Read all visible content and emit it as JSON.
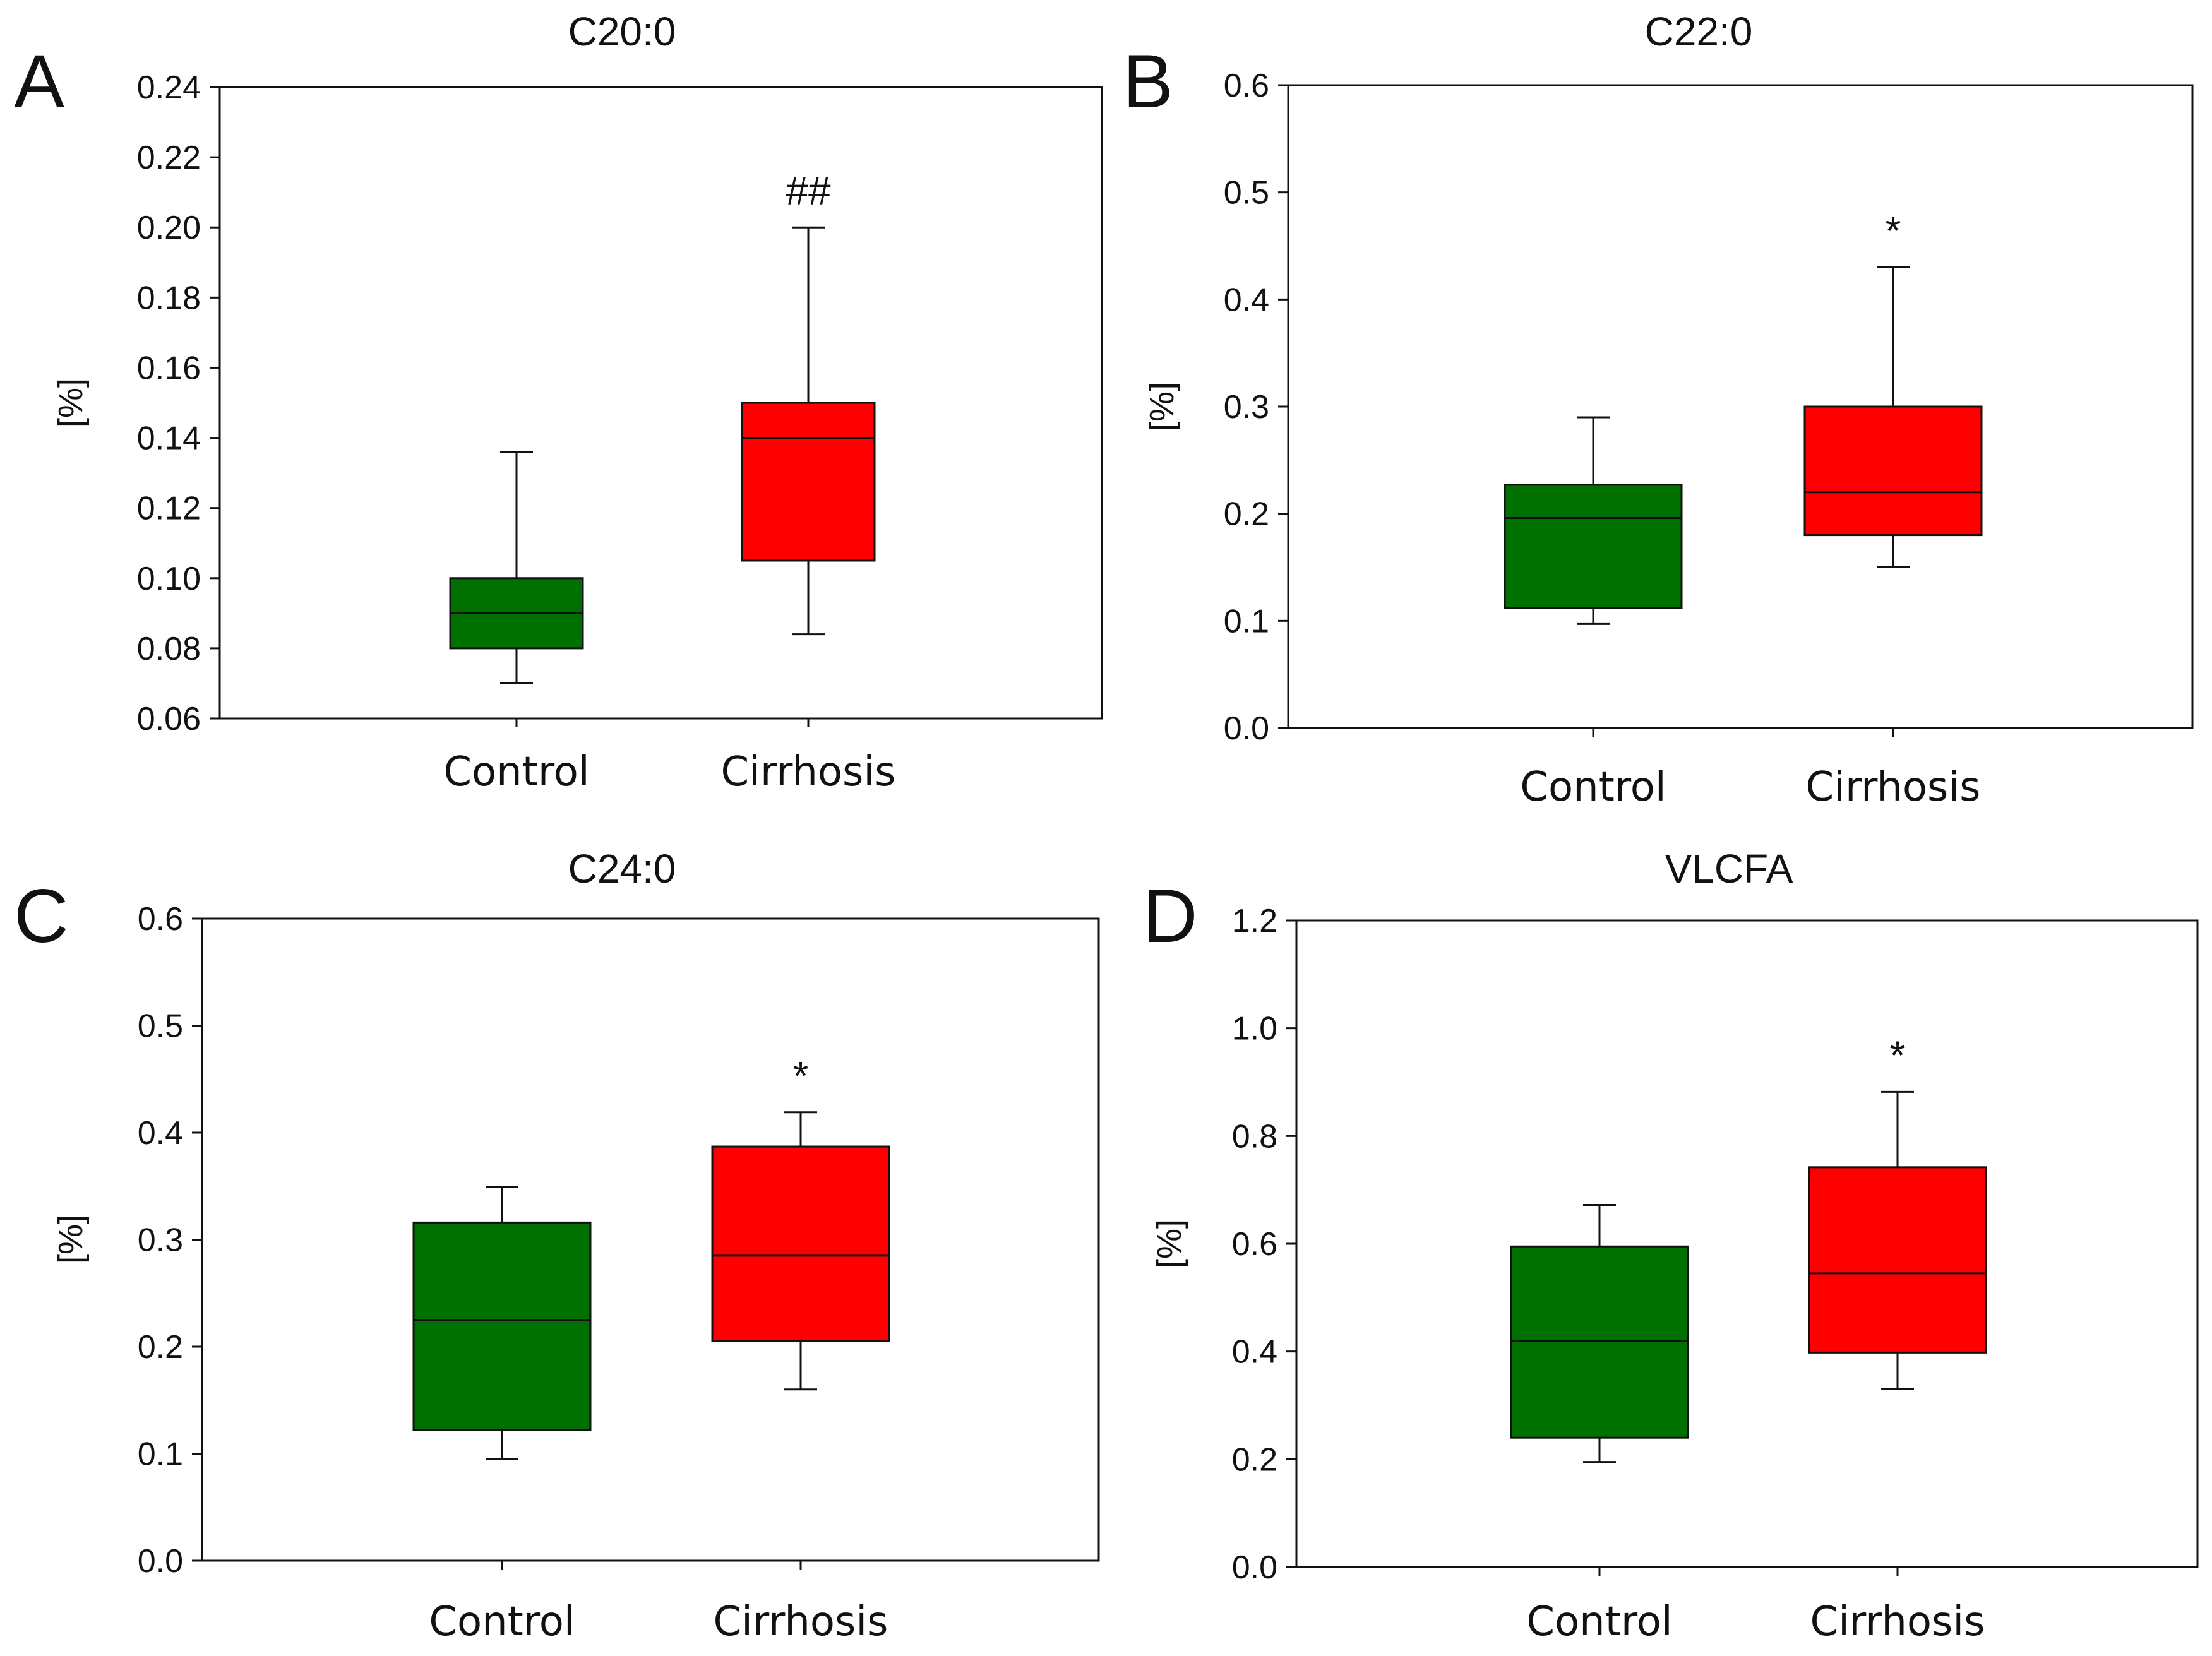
{
  "chart_data": [
    {
      "type": "box",
      "panel_letter": "A",
      "title": "C20:0",
      "ylabel": "[%]",
      "xlabel": "",
      "ylim": [
        0.06,
        0.24
      ],
      "yticks": [
        "0.06",
        "0.08",
        "0.10",
        "0.12",
        "0.14",
        "0.16",
        "0.18",
        "0.20",
        "0.22",
        "0.24"
      ],
      "categories": [
        "Control",
        "Cirrhosis"
      ],
      "boxes": [
        {
          "name": "Control",
          "color": "#007000",
          "whisker_low": 0.07,
          "q1": 0.08,
          "median": 0.09,
          "q3": 0.1,
          "whisker_high": 0.136,
          "sig": ""
        },
        {
          "name": "Cirrhosis",
          "color": "#ff0000",
          "whisker_low": 0.084,
          "q1": 0.105,
          "median": 0.14,
          "q3": 0.15,
          "whisker_high": 0.2,
          "sig": "##"
        }
      ]
    },
    {
      "type": "box",
      "panel_letter": "B",
      "title": "C22:0",
      "ylabel": "[%]",
      "xlabel": "",
      "ylim": [
        0.0,
        0.6
      ],
      "yticks": [
        "0.0",
        "0.1",
        "0.2",
        "0.3",
        "0.4",
        "0.5",
        "0.6"
      ],
      "categories": [
        "Control",
        "Cirrhosis"
      ],
      "boxes": [
        {
          "name": "Control",
          "color": "#007000",
          "whisker_low": 0.097,
          "q1": 0.112,
          "median": 0.196,
          "q3": 0.227,
          "whisker_high": 0.29,
          "sig": ""
        },
        {
          "name": "Cirrhosis",
          "color": "#ff0000",
          "whisker_low": 0.15,
          "q1": 0.18,
          "median": 0.22,
          "q3": 0.3,
          "whisker_high": 0.43,
          "sig": "*"
        }
      ]
    },
    {
      "type": "box",
      "panel_letter": "C",
      "title": "C24:0",
      "ylabel": "[%]",
      "xlabel": "",
      "ylim": [
        0.0,
        0.6
      ],
      "yticks": [
        "0.0",
        "0.1",
        "0.2",
        "0.3",
        "0.4",
        "0.5",
        "0.6"
      ],
      "categories": [
        "Control",
        "Cirrhosis"
      ],
      "boxes": [
        {
          "name": "Control",
          "color": "#007000",
          "whisker_low": 0.095,
          "q1": 0.122,
          "median": 0.225,
          "q3": 0.316,
          "whisker_high": 0.349,
          "sig": ""
        },
        {
          "name": "Cirrhosis",
          "color": "#ff0000",
          "whisker_low": 0.16,
          "q1": 0.205,
          "median": 0.285,
          "q3": 0.387,
          "whisker_high": 0.419,
          "sig": "*"
        }
      ]
    },
    {
      "type": "box",
      "panel_letter": "D",
      "title": "VLCFA",
      "ylabel": "[%]",
      "xlabel": "",
      "ylim": [
        0.0,
        1.2
      ],
      "yticks": [
        "0.0",
        "0.2",
        "0.4",
        "0.6",
        "0.8",
        "1.0",
        "1.2"
      ],
      "categories": [
        "Control",
        "Cirrhosis"
      ],
      "boxes": [
        {
          "name": "Control",
          "color": "#007000",
          "whisker_low": 0.195,
          "q1": 0.24,
          "median": 0.42,
          "q3": 0.595,
          "whisker_high": 0.672,
          "sig": ""
        },
        {
          "name": "Cirrhosis",
          "color": "#ff0000",
          "whisker_low": 0.33,
          "q1": 0.398,
          "median": 0.545,
          "q3": 0.742,
          "whisker_high": 0.882,
          "sig": "*"
        }
      ]
    }
  ]
}
